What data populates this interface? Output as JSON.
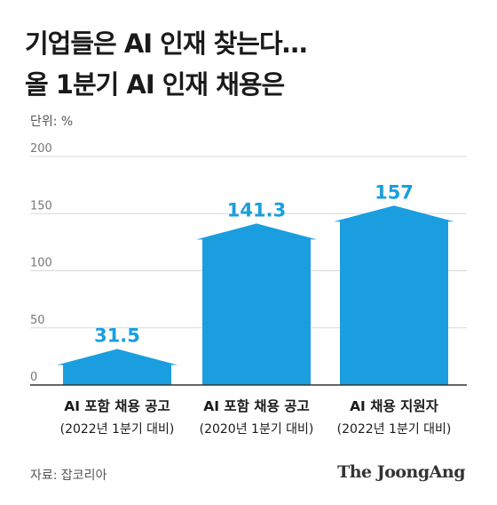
{
  "title_lines": [
    "기업들은 AI 인재 찾는다…",
    "올 1분기 AI 인재 채용은"
  ],
  "unit": "단위: %",
  "source": "자료: 잡코리아",
  "brand": "The JoongAng",
  "colors": {
    "bar": "#1a9ee0",
    "label": "#1a9ee0",
    "grid": "#d9d9d9",
    "axis": "#333333"
  },
  "chart_data": {
    "type": "bar",
    "title": "기업들은 AI 인재 찾는다… 올 1분기 AI 인재 채용은",
    "ylabel": "단위: %",
    "ylim": [
      0,
      200
    ],
    "yticks": [
      0,
      50,
      100,
      150,
      200
    ],
    "grid": true,
    "categories": [
      [
        "AI 포함 채용 공고",
        "(2022년 1분기 대비)"
      ],
      [
        "AI 포함 채용 공고",
        "(2020년 1분기 대비)"
      ],
      [
        "AI 채용 지원자",
        "(2022년 1분기 대비)"
      ]
    ],
    "values": [
      31.5,
      141.3,
      157
    ],
    "value_labels": [
      "31.5",
      "141.3",
      "157"
    ]
  }
}
